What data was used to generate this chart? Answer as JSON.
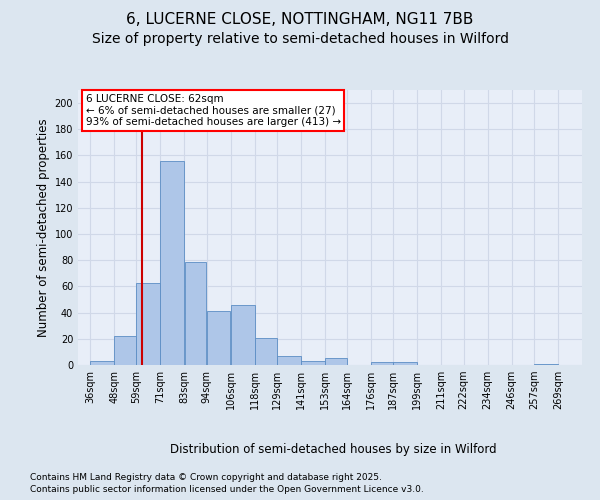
{
  "title1": "6, LUCERNE CLOSE, NOTTINGHAM, NG11 7BB",
  "title2": "Size of property relative to semi-detached houses in Wilford",
  "xlabel": "Distribution of semi-detached houses by size in Wilford",
  "ylabel": "Number of semi-detached properties",
  "footnote1": "Contains HM Land Registry data © Crown copyright and database right 2025.",
  "footnote2": "Contains public sector information licensed under the Open Government Licence v3.0.",
  "annotation_title": "6 LUCERNE CLOSE: 62sqm",
  "annotation_line1": "← 6% of semi-detached houses are smaller (27)",
  "annotation_line2": "93% of semi-detached houses are larger (413) →",
  "property_size": 62,
  "bar_left_edges": [
    36,
    48,
    59,
    71,
    83,
    94,
    106,
    118,
    129,
    141,
    153,
    164,
    176,
    187,
    199,
    211,
    222,
    234,
    246,
    257
  ],
  "bar_widths": [
    12,
    11,
    12,
    12,
    11,
    12,
    12,
    11,
    12,
    12,
    11,
    12,
    11,
    12,
    12,
    11,
    12,
    12,
    11,
    12
  ],
  "bar_heights": [
    3,
    22,
    63,
    156,
    79,
    41,
    46,
    21,
    7,
    3,
    5,
    0,
    2,
    2,
    0,
    0,
    0,
    0,
    0,
    1
  ],
  "tick_labels": [
    "36sqm",
    "48sqm",
    "59sqm",
    "71sqm",
    "83sqm",
    "94sqm",
    "106sqm",
    "118sqm",
    "129sqm",
    "141sqm",
    "153sqm",
    "164sqm",
    "176sqm",
    "187sqm",
    "199sqm",
    "211sqm",
    "222sqm",
    "234sqm",
    "246sqm",
    "257sqm",
    "269sqm"
  ],
  "tick_positions": [
    36,
    48,
    59,
    71,
    83,
    94,
    106,
    118,
    129,
    141,
    153,
    164,
    176,
    187,
    199,
    211,
    222,
    234,
    246,
    257,
    269
  ],
  "bar_color": "#aec6e8",
  "bar_edge_color": "#5b8dc4",
  "vline_color": "#cc0000",
  "vline_x": 62,
  "ylim": [
    0,
    210
  ],
  "yticks": [
    0,
    20,
    40,
    60,
    80,
    100,
    120,
    140,
    160,
    180,
    200
  ],
  "grid_color": "#d0d8e8",
  "bg_color": "#dce6f0",
  "plot_bg_color": "#e8eef8",
  "title_fontsize": 11,
  "subtitle_fontsize": 10,
  "axis_label_fontsize": 8.5,
  "tick_fontsize": 7,
  "footnote_fontsize": 6.5,
  "annotation_fontsize": 7.5
}
